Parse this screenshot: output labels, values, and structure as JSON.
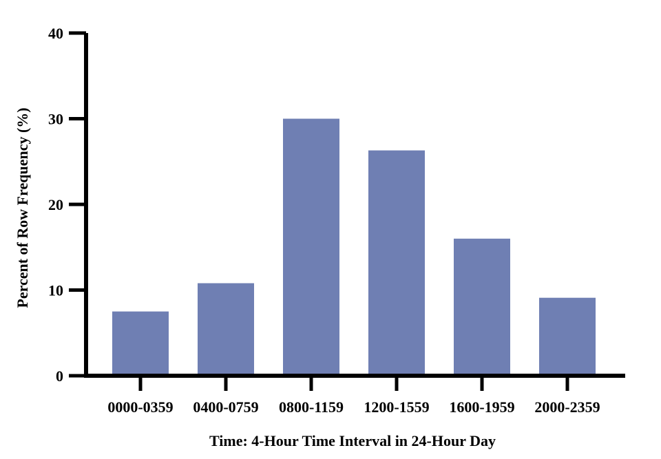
{
  "chart_data": {
    "type": "bar",
    "categories": [
      "0000-0359",
      "0400-0759",
      "0800-1159",
      "1200-1559",
      "1600-1959",
      "2000-2359"
    ],
    "values": [
      7.5,
      10.8,
      30.0,
      26.3,
      16.0,
      9.1
    ],
    "title": "",
    "xlabel": "Time: 4-Hour Time Interval in 24-Hour Day",
    "ylabel": "Percent of Row Frequency  (%)",
    "ylim": [
      0,
      40
    ],
    "yticks": [
      "0",
      "10",
      "20",
      "30",
      "40"
    ],
    "bar_color": "#6f7fb3",
    "grid": false,
    "legend": "none"
  }
}
